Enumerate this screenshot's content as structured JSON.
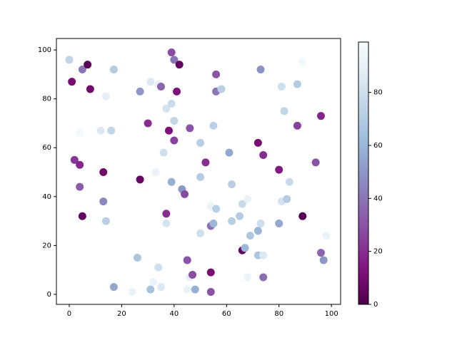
{
  "chart_data": {
    "type": "scatter",
    "x": [
      0,
      1,
      5,
      7,
      8,
      17,
      14,
      27,
      31,
      34,
      35,
      39,
      40,
      42,
      41,
      56,
      56,
      58,
      73,
      81,
      87,
      89,
      82,
      37,
      39,
      40,
      30,
      38,
      46,
      40,
      50,
      55,
      72,
      74,
      87,
      96,
      4,
      12,
      16,
      36,
      2,
      4,
      13,
      27,
      33,
      52,
      61,
      80,
      94,
      4,
      13,
      39,
      43,
      44,
      50,
      62,
      5,
      14,
      37,
      37,
      54,
      56,
      66,
      65,
      62,
      68,
      81,
      83,
      84,
      89,
      50,
      54,
      55,
      66,
      67,
      69,
      72,
      73,
      80,
      72,
      74,
      98,
      96,
      97,
      26,
      17,
      24,
      31,
      32,
      34,
      35,
      45,
      45,
      46,
      47,
      48,
      54,
      54,
      68,
      74
    ],
    "y": [
      96,
      87,
      92,
      94,
      84,
      92,
      81,
      83,
      87,
      86,
      85,
      99,
      96,
      94,
      83,
      90,
      83,
      84,
      92,
      85,
      86,
      95,
      75,
      76,
      78,
      71,
      70,
      67,
      68,
      63,
      62,
      69,
      62,
      57,
      69,
      73,
      66,
      67,
      67,
      58,
      55,
      53,
      50,
      47,
      50,
      54,
      58,
      51,
      54,
      44,
      38,
      46,
      43,
      41,
      48,
      45,
      32,
      30,
      33,
      29,
      36,
      35,
      37,
      32,
      30,
      39,
      38,
      39,
      46,
      32,
      25,
      28,
      29,
      18,
      19,
      24,
      26,
      29,
      29,
      16,
      16,
      24,
      17,
      14,
      15,
      3,
      1,
      2,
      5,
      11,
      3,
      14,
      2,
      7,
      8,
      2,
      9,
      1,
      7,
      7
    ],
    "c": [
      75,
      10,
      40,
      3,
      8,
      70,
      88,
      50,
      85,
      90,
      35,
      28,
      40,
      5,
      12,
      30,
      40,
      72,
      48,
      80,
      70,
      96,
      75,
      82,
      78,
      75,
      20,
      12,
      30,
      25,
      72,
      72,
      10,
      20,
      25,
      18,
      97,
      85,
      75,
      80,
      22,
      18,
      8,
      6,
      92,
      20,
      55,
      15,
      30,
      32,
      45,
      58,
      50,
      28,
      70,
      72,
      5,
      72,
      20,
      82,
      92,
      72,
      78,
      70,
      72,
      92,
      82,
      70,
      78,
      2,
      80,
      38,
      60,
      5,
      60,
      68,
      60,
      80,
      55,
      68,
      85,
      92,
      35,
      50,
      68,
      55,
      92,
      65,
      92,
      80,
      85,
      30,
      92,
      88,
      28,
      58,
      10,
      30,
      92,
      38
    ],
    "colormap": "BuPu_r",
    "clim": [
      0,
      99
    ],
    "cticks": [
      0,
      20,
      40,
      60,
      80
    ],
    "xlim": [
      -4.9,
      103.5
    ],
    "ylim": [
      -4.1,
      104.7
    ],
    "xticks": [
      0,
      20,
      40,
      60,
      80,
      100
    ],
    "yticks": [
      0,
      20,
      40,
      60,
      80,
      100
    ]
  }
}
